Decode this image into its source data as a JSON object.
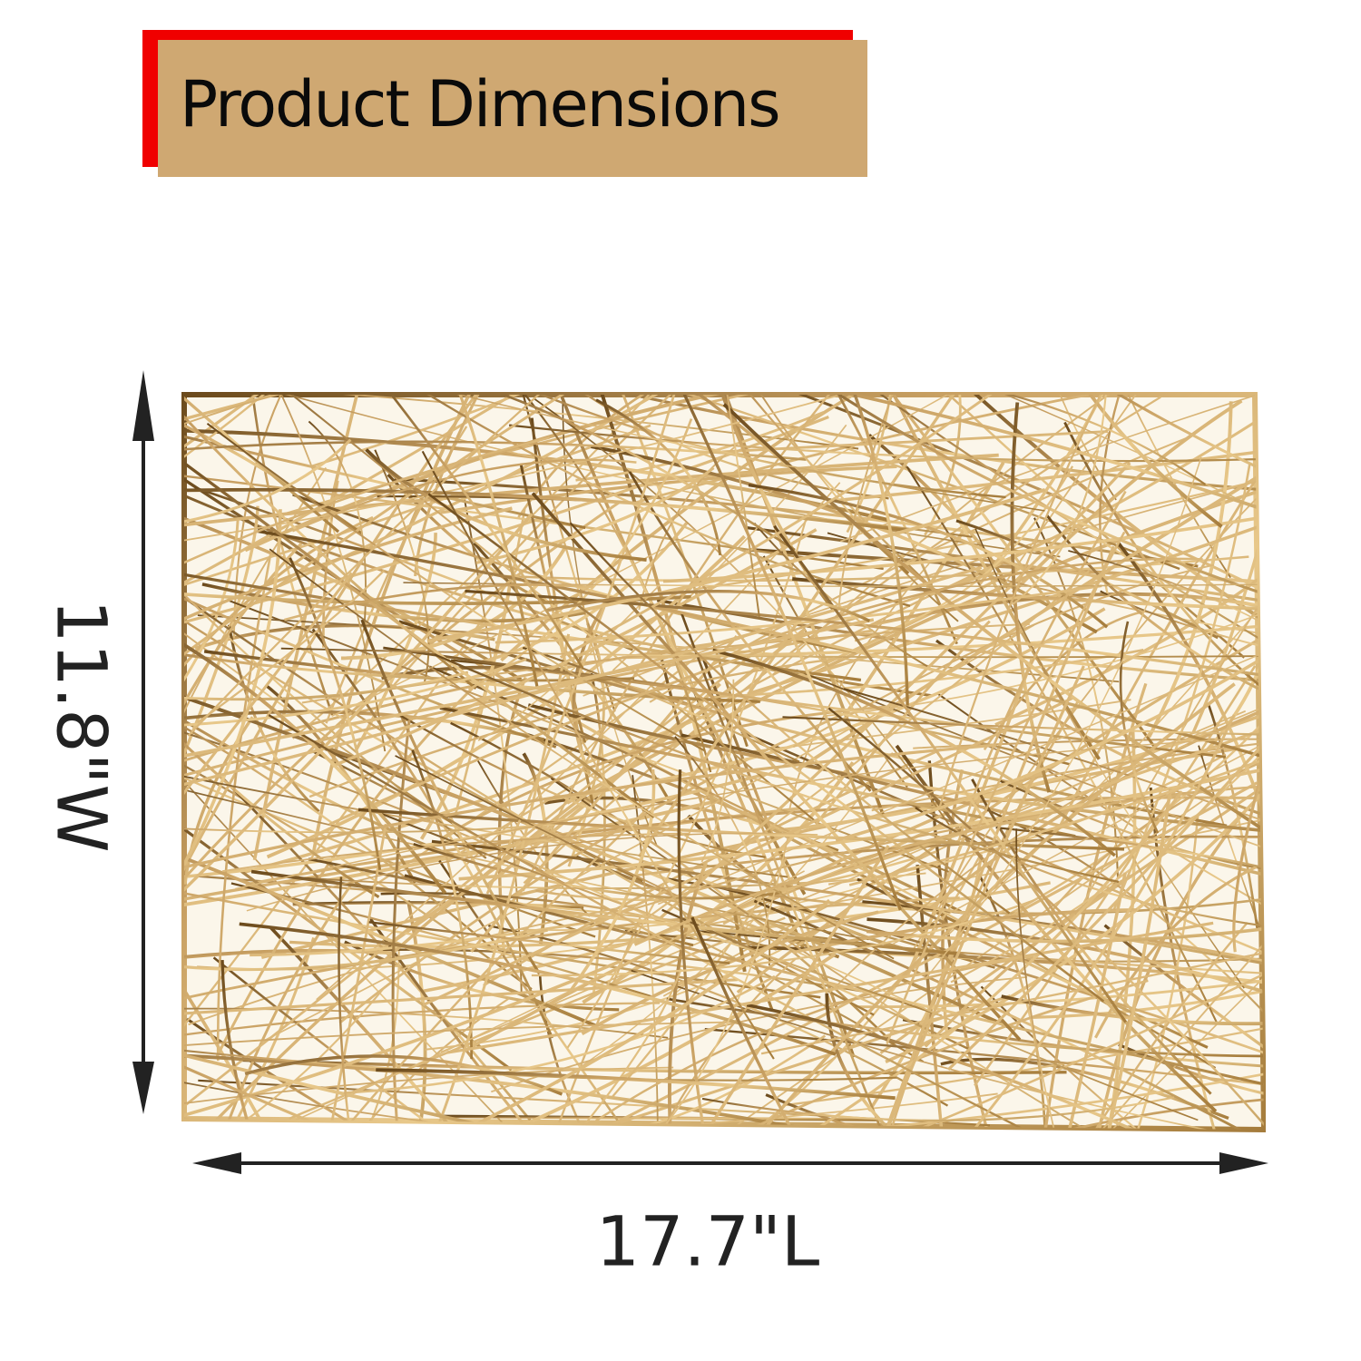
{
  "header": {
    "title": "Product Dimensions"
  },
  "dimensions": {
    "width_label": "11.8\"W",
    "length_label": "17.7\"L"
  },
  "colors": {
    "accent_red": "#f00000",
    "header_tan": "#cfa872",
    "gold_light": "#e8c88a",
    "gold_dark": "#6b4a1c",
    "arrow": "#222222"
  },
  "product": {
    "name": "gold-placemat",
    "pattern": "random-woven-lines"
  }
}
